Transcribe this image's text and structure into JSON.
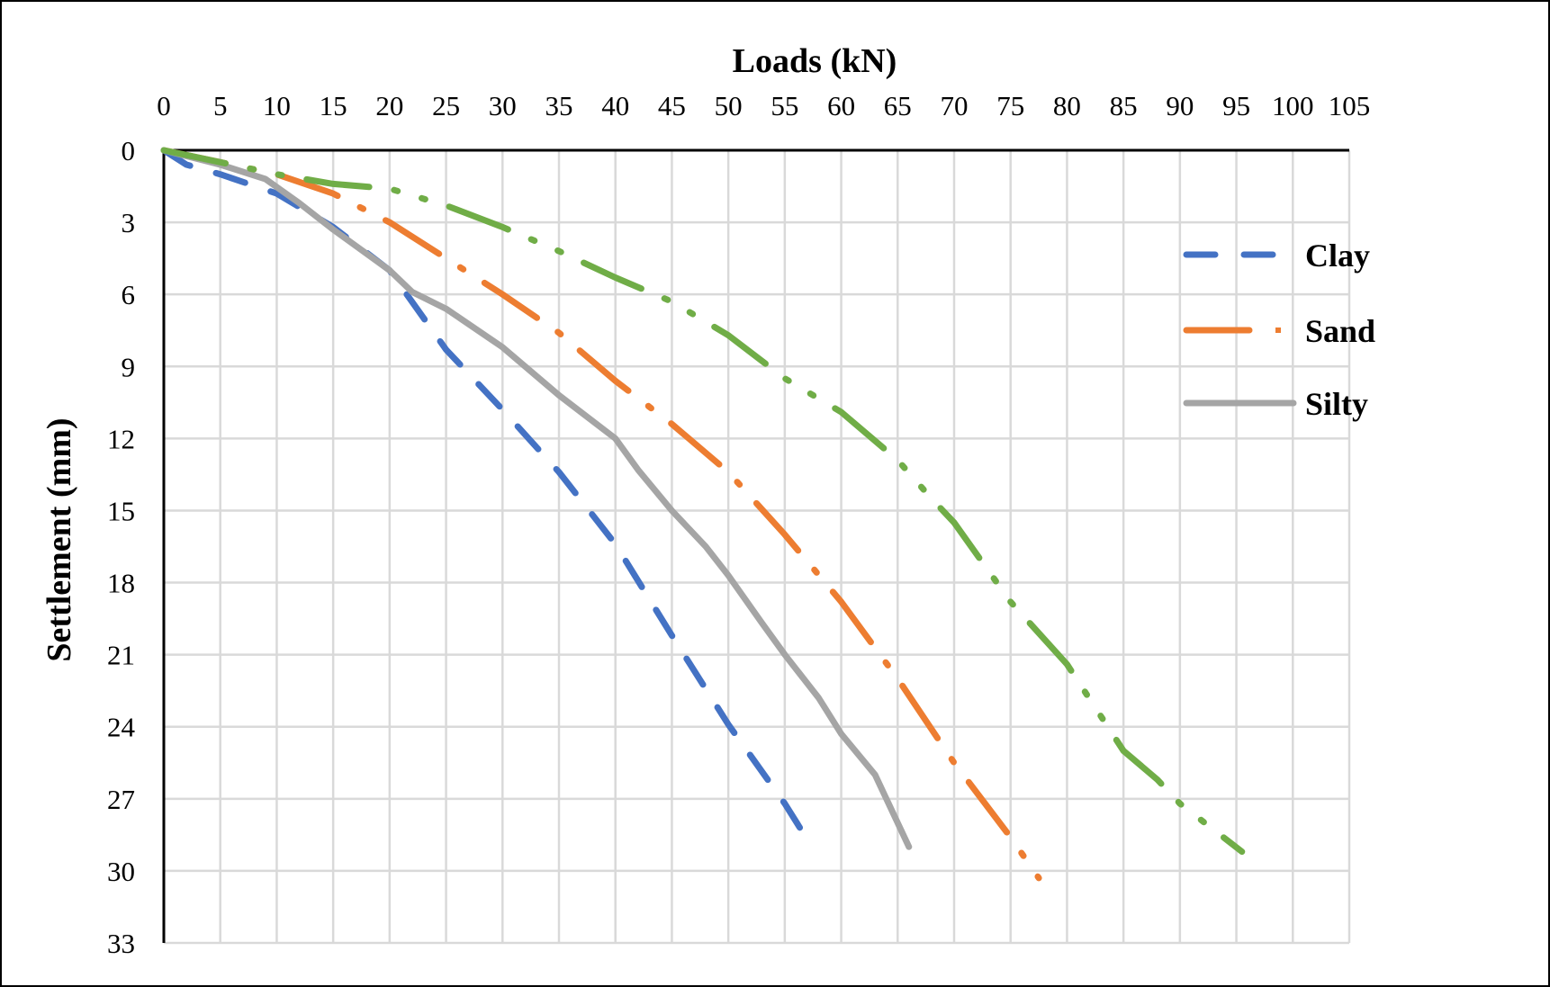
{
  "chart_data": {
    "type": "line",
    "title": "",
    "xlabel": "Loads (kN)",
    "ylabel": "Settlement (mm)",
    "xlim": [
      0,
      105
    ],
    "ylim": [
      0,
      33
    ],
    "y_inverted": true,
    "x_axis_position": "top",
    "x_ticks": [
      "0",
      "5",
      "10",
      "15",
      "20",
      "25",
      "30",
      "35",
      "40",
      "45",
      "50",
      "55",
      "60",
      "65",
      "70",
      "75",
      "80",
      "85",
      "90",
      "95",
      "100",
      "105"
    ],
    "y_ticks": [
      "0",
      "3",
      "6",
      "9",
      "12",
      "15",
      "18",
      "21",
      "24",
      "27",
      "30",
      "33"
    ],
    "grid": true,
    "legend_position": "right",
    "series": [
      {
        "name": "Clay",
        "color": "#4472C4",
        "style": "dash",
        "in_legend": true,
        "points": [
          [
            0,
            0
          ],
          [
            2,
            0.6
          ],
          [
            5,
            1.0
          ],
          [
            10,
            1.8
          ],
          [
            15,
            3.2
          ],
          [
            20,
            5.0
          ],
          [
            25,
            8.3
          ],
          [
            30,
            10.8
          ],
          [
            35,
            13.4
          ],
          [
            40,
            16.4
          ],
          [
            45,
            20.2
          ],
          [
            50,
            23.9
          ],
          [
            55,
            27.2
          ],
          [
            57,
            28.7
          ]
        ]
      },
      {
        "name": "Sand",
        "color": "#ED7D31",
        "style": "dash-dot",
        "in_legend": true,
        "points": [
          [
            0,
            0
          ],
          [
            5,
            0.5
          ],
          [
            10,
            1.0
          ],
          [
            15,
            1.8
          ],
          [
            20,
            3.0
          ],
          [
            25,
            4.5
          ],
          [
            30,
            6.0
          ],
          [
            35,
            7.6
          ],
          [
            40,
            9.6
          ],
          [
            45,
            11.4
          ],
          [
            50,
            13.4
          ],
          [
            55,
            16.0
          ],
          [
            60,
            18.8
          ],
          [
            65,
            22.0
          ],
          [
            70,
            25.5
          ],
          [
            75,
            28.6
          ],
          [
            77.5,
            30.3
          ]
        ]
      },
      {
        "name": "Silty",
        "color": "#A5A5A5",
        "style": "solid",
        "in_legend": true,
        "points": [
          [
            0,
            0
          ],
          [
            5,
            0.6
          ],
          [
            9,
            1.2
          ],
          [
            12,
            2.2
          ],
          [
            15,
            3.3
          ],
          [
            20,
            5.0
          ],
          [
            22,
            5.9
          ],
          [
            25,
            6.6
          ],
          [
            30,
            8.2
          ],
          [
            35,
            10.2
          ],
          [
            40,
            12.0
          ],
          [
            42,
            13.3
          ],
          [
            45,
            15.0
          ],
          [
            48,
            16.5
          ],
          [
            50,
            17.7
          ],
          [
            53,
            19.7
          ],
          [
            55,
            21.0
          ],
          [
            58,
            22.8
          ],
          [
            60,
            24.3
          ],
          [
            63,
            26.0
          ],
          [
            64,
            27.0
          ],
          [
            66,
            29.0
          ]
        ]
      },
      {
        "name": "",
        "color": "#70AD47",
        "style": "long-dash-dot-dot",
        "in_legend": false,
        "points": [
          [
            0,
            0
          ],
          [
            5,
            0.5
          ],
          [
            10,
            1.0
          ],
          [
            15,
            1.4
          ],
          [
            20,
            1.6
          ],
          [
            25,
            2.3
          ],
          [
            30,
            3.2
          ],
          [
            35,
            4.2
          ],
          [
            40,
            5.3
          ],
          [
            45,
            6.3
          ],
          [
            50,
            7.7
          ],
          [
            55,
            9.5
          ],
          [
            60,
            10.9
          ],
          [
            65,
            12.9
          ],
          [
            68,
            14.5
          ],
          [
            70,
            15.5
          ],
          [
            75,
            18.8
          ],
          [
            80,
            21.4
          ],
          [
            85,
            25.0
          ],
          [
            88,
            26.2
          ],
          [
            90,
            27.2
          ],
          [
            95.5,
            29.2
          ]
        ]
      }
    ]
  },
  "legend": {
    "items": [
      {
        "label": "Clay",
        "color": "#4472C4"
      },
      {
        "label": "Sand",
        "color": "#ED7D31"
      },
      {
        "label": "Silty",
        "color": "#A5A5A5"
      }
    ]
  },
  "axes": {
    "x_title": "Loads (kN)",
    "y_title": "Settlement (mm)"
  }
}
